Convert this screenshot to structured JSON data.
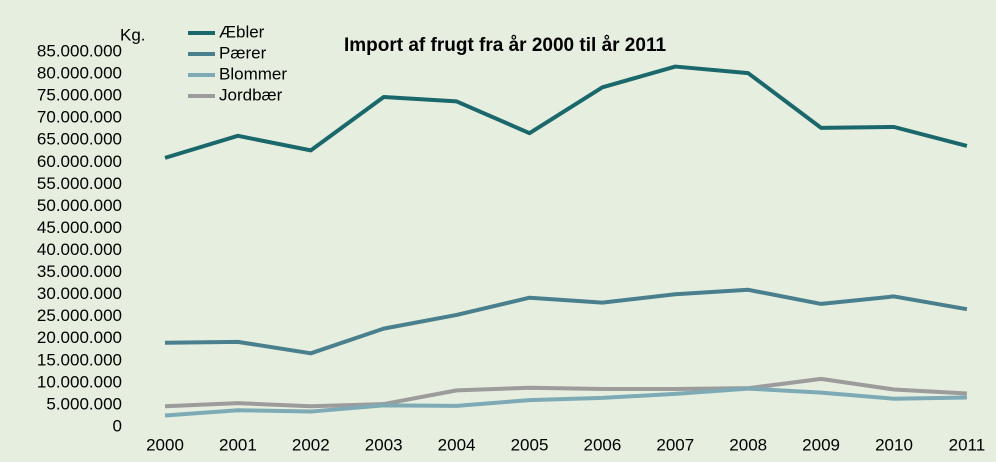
{
  "chart_data": {
    "type": "line",
    "title": "Import af frugt fra år 2000 til år 2011",
    "y_label": "Kg.",
    "categories": [
      "2000",
      "2001",
      "2002",
      "2003",
      "2004",
      "2005",
      "2006",
      "2007",
      "2008",
      "2009",
      "2010",
      "2011"
    ],
    "series": [
      {
        "name": "Æbler",
        "color": "#1b686c",
        "values": [
          61000000,
          66000000,
          62700000,
          74800000,
          73800000,
          66600000,
          77000000,
          81700000,
          80200000,
          67800000,
          68000000,
          63700000
        ]
      },
      {
        "name": "Pærer",
        "color": "#4a7f8e",
        "values": [
          19100000,
          19300000,
          16700000,
          22300000,
          25400000,
          29300000,
          28200000,
          30100000,
          31100000,
          27900000,
          29600000,
          26700000
        ]
      },
      {
        "name": "Blommer",
        "color": "#7eaab5",
        "values": [
          2600000,
          3800000,
          3500000,
          4900000,
          4800000,
          6100000,
          6600000,
          7500000,
          8700000,
          7800000,
          6400000,
          6700000
        ]
      },
      {
        "name": "Jordbær",
        "color": "#9c9c9c",
        "values": [
          4700000,
          5400000,
          4700000,
          5200000,
          8300000,
          8900000,
          8600000,
          8600000,
          8800000,
          10900000,
          8500000,
          7600000
        ]
      }
    ],
    "ylim": [
      0,
      85000000
    ],
    "yticks": [
      0,
      {
        "value": 5000000,
        "label": "5.000.000"
      },
      {
        "value": 10000000,
        "label": "10.000.000"
      },
      {
        "value": 15000000,
        "label": "15.000.000"
      },
      {
        "value": 20000000,
        "label": "20.000.000"
      },
      {
        "value": 25000000,
        "label": "25.000.000"
      },
      {
        "value": 30000000,
        "label": "30.000.000"
      },
      {
        "value": 35000000,
        "label": "35.000.000"
      },
      {
        "value": 40000000,
        "label": "40.000.000"
      },
      {
        "value": 45000000,
        "label": "45.000.000"
      },
      {
        "value": 50000000,
        "label": "50.000.000"
      },
      {
        "value": 55000000,
        "label": "55.000.000"
      },
      {
        "value": 60000000,
        "label": "60.000.000"
      },
      {
        "value": 65000000,
        "label": "65.000.000"
      },
      {
        "value": 70000000,
        "label": "70.000.000"
      },
      {
        "value": 75000000,
        "label": "75.000.000"
      },
      {
        "value": 80000000,
        "label": "80.000.000"
      },
      {
        "value": 85000000,
        "label": "85.000.000"
      }
    ],
    "grid": false,
    "legend": "top-left"
  }
}
